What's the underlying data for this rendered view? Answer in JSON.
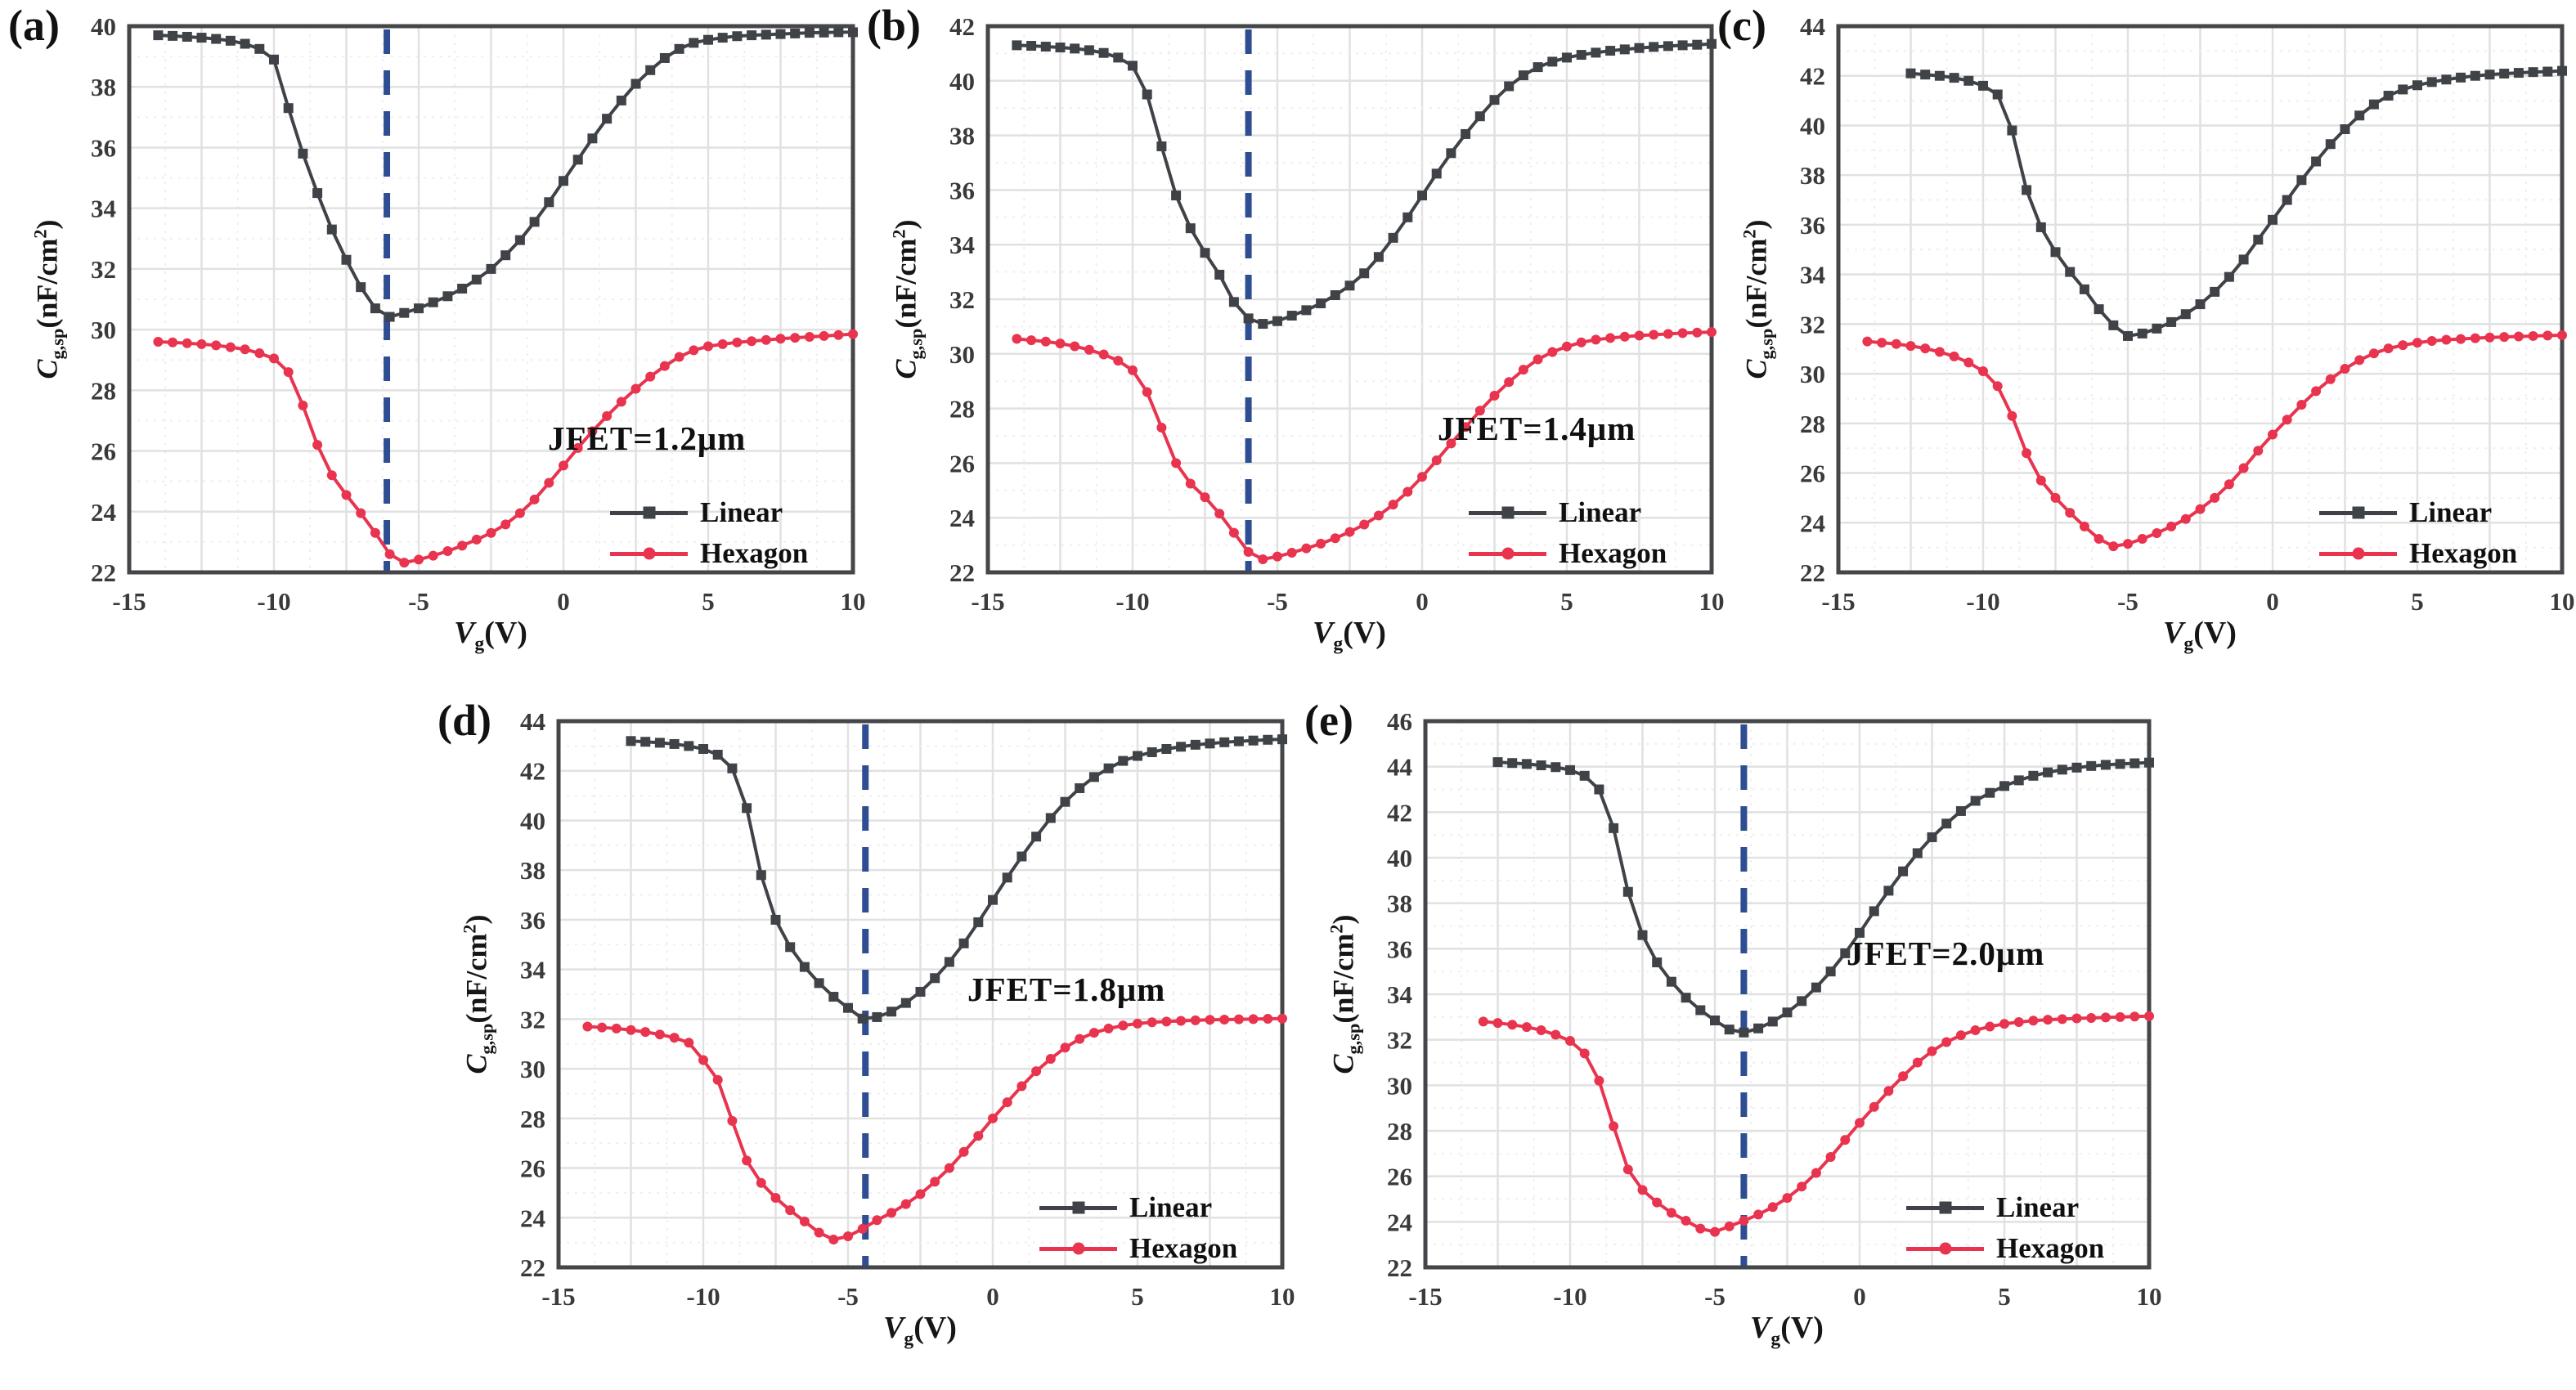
{
  "legend": {
    "linear": "Linear",
    "hexagon": "Hexagon"
  },
  "labels": {
    "x_main": "V",
    "x_sub": "g",
    "x_rest": "(V)",
    "y_main": "C",
    "y_sub": "g,sp",
    "y_rest": "(nF/cm",
    "y_sup": "2",
    "y_close": ")"
  },
  "style": {
    "linear": "#3f4247",
    "hexagon": "#e8344e",
    "dashed": "#2e4d92",
    "grid_major": "#e1e1e1",
    "grid_minor": "#efefef",
    "frame": "#45464a",
    "tick": "#3a3a3a"
  },
  "chart_data": [
    {
      "type": "line",
      "tag": "(a)",
      "jfet_label": "JFET=1.2μm",
      "xlabel": "Vg(V)",
      "ylabel": "Cg,sp(nF/cm2)",
      "xlim": [
        -15,
        10
      ],
      "x_ticks": [
        -15,
        -10,
        -5,
        0,
        5,
        10
      ],
      "ylim": [
        22,
        40
      ],
      "ytick_step": 2,
      "dashed_x": -6.1,
      "grid": true,
      "legend_position": "lower right",
      "series": [
        {
          "name": "Linear",
          "marker": "square",
          "x0": -14,
          "dx": 0.5,
          "y": [
            39.7,
            39.68,
            39.65,
            39.62,
            39.58,
            39.52,
            39.42,
            39.25,
            38.9,
            37.3,
            35.8,
            34.5,
            33.3,
            32.3,
            31.4,
            30.7,
            30.42,
            30.55,
            30.7,
            30.9,
            31.1,
            31.35,
            31.65,
            32.0,
            32.45,
            32.95,
            33.55,
            34.2,
            34.9,
            35.6,
            36.3,
            36.95,
            37.55,
            38.1,
            38.55,
            38.95,
            39.25,
            39.45,
            39.55,
            39.62,
            39.67,
            39.7,
            39.72,
            39.74,
            39.76,
            39.78,
            39.79,
            39.8,
            39.8
          ]
        },
        {
          "name": "Hexagon",
          "marker": "circle",
          "x0": -14,
          "dx": 0.5,
          "y": [
            29.6,
            29.58,
            29.55,
            29.52,
            29.48,
            29.42,
            29.35,
            29.22,
            29.05,
            28.6,
            27.5,
            26.2,
            25.2,
            24.55,
            23.95,
            23.3,
            22.6,
            22.32,
            22.42,
            22.55,
            22.7,
            22.88,
            23.08,
            23.3,
            23.58,
            23.95,
            24.4,
            24.95,
            25.52,
            26.1,
            26.65,
            27.15,
            27.62,
            28.05,
            28.45,
            28.8,
            29.1,
            29.32,
            29.45,
            29.52,
            29.58,
            29.62,
            29.66,
            29.7,
            29.73,
            29.76,
            29.79,
            29.82,
            29.85
          ]
        }
      ]
    },
    {
      "type": "line",
      "tag": "(b)",
      "jfet_label": "JFET=1.4μm",
      "xlabel": "Vg(V)",
      "ylabel": "Cg,sp(nF/cm2)",
      "xlim": [
        -15,
        10
      ],
      "x_ticks": [
        -15,
        -10,
        -5,
        0,
        5,
        10
      ],
      "ylim": [
        22,
        42
      ],
      "ytick_step": 2,
      "dashed_x": -6.0,
      "grid": true,
      "legend_position": "lower right",
      "series": [
        {
          "name": "Linear",
          "marker": "square",
          "x0": -14,
          "dx": 0.5,
          "y": [
            41.3,
            41.28,
            41.25,
            41.22,
            41.18,
            41.12,
            41.02,
            40.85,
            40.55,
            39.5,
            37.6,
            35.8,
            34.6,
            33.7,
            32.9,
            31.9,
            31.3,
            31.1,
            31.2,
            31.4,
            31.6,
            31.85,
            32.15,
            32.5,
            32.95,
            33.55,
            34.25,
            35.0,
            35.8,
            36.6,
            37.35,
            38.05,
            38.7,
            39.3,
            39.8,
            40.2,
            40.5,
            40.7,
            40.85,
            40.95,
            41.03,
            41.1,
            41.15,
            41.2,
            41.24,
            41.27,
            41.3,
            41.32,
            41.35
          ]
        },
        {
          "name": "Hexagon",
          "marker": "circle",
          "x0": -14,
          "dx": 0.5,
          "y": [
            30.55,
            30.5,
            30.45,
            30.38,
            30.28,
            30.15,
            29.98,
            29.75,
            29.4,
            28.6,
            27.3,
            26.0,
            25.25,
            24.75,
            24.15,
            23.45,
            22.75,
            22.48,
            22.58,
            22.72,
            22.88,
            23.05,
            23.25,
            23.48,
            23.75,
            24.08,
            24.48,
            24.95,
            25.5,
            26.1,
            26.72,
            27.32,
            27.92,
            28.47,
            28.97,
            29.42,
            29.8,
            30.07,
            30.27,
            30.42,
            30.52,
            30.58,
            30.63,
            30.67,
            30.7,
            30.73,
            30.76,
            30.78,
            30.8
          ]
        }
      ]
    },
    {
      "type": "line",
      "tag": "(c)",
      "xlabel": "Vg(V)",
      "ylabel": "Cg,sp(nF/cm2)",
      "xlim": [
        -15,
        10
      ],
      "x_ticks": [
        -15,
        -10,
        -5,
        0,
        5,
        10
      ],
      "ylim": [
        22,
        44
      ],
      "ytick_step": 2,
      "dashed_x": null,
      "grid": true,
      "legend_position": "lower right",
      "series": [
        {
          "name": "Linear",
          "marker": "square",
          "x0": -12.5,
          "dx": 0.5,
          "y": [
            42.1,
            42.05,
            42.0,
            41.92,
            41.8,
            41.6,
            41.25,
            39.8,
            37.4,
            35.9,
            34.9,
            34.1,
            33.4,
            32.6,
            31.95,
            31.52,
            31.62,
            31.82,
            32.08,
            32.4,
            32.8,
            33.3,
            33.9,
            34.6,
            35.4,
            36.2,
            37.0,
            37.8,
            38.55,
            39.25,
            39.85,
            40.4,
            40.85,
            41.2,
            41.45,
            41.62,
            41.75,
            41.85,
            41.93,
            42.0,
            42.05,
            42.09,
            42.12,
            42.15,
            42.17,
            42.2
          ]
        },
        {
          "name": "Hexagon",
          "marker": "circle",
          "x0": -14,
          "dx": 0.5,
          "y": [
            31.3,
            31.25,
            31.2,
            31.12,
            31.02,
            30.88,
            30.7,
            30.45,
            30.1,
            29.5,
            28.3,
            26.8,
            25.7,
            25.0,
            24.4,
            23.85,
            23.35,
            23.05,
            23.15,
            23.35,
            23.58,
            23.85,
            24.15,
            24.55,
            25.0,
            25.55,
            26.2,
            26.9,
            27.55,
            28.15,
            28.75,
            29.3,
            29.78,
            30.2,
            30.55,
            30.82,
            31.02,
            31.15,
            31.25,
            31.32,
            31.37,
            31.4,
            31.43,
            31.46,
            31.48,
            31.5,
            31.52,
            31.54,
            31.55
          ]
        }
      ]
    },
    {
      "type": "line",
      "tag": "(d)",
      "jfet_label": "JFET=1.8μm",
      "xlabel": "Vg(V)",
      "ylabel": "Cg,sp(nF/cm2)",
      "xlim": [
        -15,
        10
      ],
      "x_ticks": [
        -15,
        -10,
        -5,
        0,
        5,
        10
      ],
      "ylim": [
        22,
        44
      ],
      "ytick_step": 2,
      "dashed_x": -4.4,
      "grid": true,
      "legend_position": "lower right",
      "series": [
        {
          "name": "Linear",
          "marker": "square",
          "x0": -12.5,
          "dx": 0.5,
          "y": [
            43.2,
            43.17,
            43.13,
            43.08,
            43.0,
            42.88,
            42.65,
            42.1,
            40.5,
            37.8,
            36.0,
            34.9,
            34.1,
            33.45,
            32.9,
            32.45,
            32.02,
            32.08,
            32.3,
            32.65,
            33.1,
            33.65,
            34.3,
            35.05,
            35.9,
            36.8,
            37.7,
            38.55,
            39.35,
            40.1,
            40.75,
            41.3,
            41.75,
            42.1,
            42.4,
            42.6,
            42.75,
            42.88,
            42.97,
            43.05,
            43.1,
            43.15,
            43.19,
            43.22,
            43.25,
            43.27
          ]
        },
        {
          "name": "Hexagon",
          "marker": "circle",
          "x0": -14,
          "dx": 0.5,
          "y": [
            31.7,
            31.66,
            31.62,
            31.56,
            31.48,
            31.38,
            31.25,
            31.05,
            30.35,
            29.55,
            27.9,
            26.3,
            25.4,
            24.8,
            24.3,
            23.85,
            23.4,
            23.12,
            23.25,
            23.55,
            23.9,
            24.2,
            24.55,
            24.95,
            25.45,
            26.0,
            26.65,
            27.3,
            28.0,
            28.65,
            29.3,
            29.9,
            30.4,
            30.85,
            31.2,
            31.45,
            31.62,
            31.74,
            31.82,
            31.87,
            31.9,
            31.93,
            31.95,
            31.97,
            31.98,
            31.99,
            32.0,
            32.01,
            32.02
          ]
        }
      ]
    },
    {
      "type": "line",
      "tag": "(e)",
      "jfet_label": "JFET=2.0μm",
      "xlabel": "Vg(V)",
      "ylabel": "Cg,sp(nF/cm2)",
      "xlim": [
        -15,
        10
      ],
      "x_ticks": [
        -15,
        -10,
        -5,
        0,
        5,
        10
      ],
      "ylim": [
        22,
        46
      ],
      "ytick_step": 2,
      "dashed_x": -4.0,
      "grid": true,
      "legend_position": "lower right",
      "series": [
        {
          "name": "Linear",
          "marker": "square",
          "x0": -12.5,
          "dx": 0.5,
          "y": [
            44.2,
            44.16,
            44.12,
            44.06,
            43.98,
            43.85,
            43.6,
            43.0,
            41.3,
            38.5,
            36.6,
            35.4,
            34.55,
            33.85,
            33.3,
            32.85,
            32.45,
            32.32,
            32.5,
            32.8,
            33.2,
            33.7,
            34.3,
            35.0,
            35.8,
            36.7,
            37.65,
            38.55,
            39.4,
            40.2,
            40.9,
            41.5,
            42.05,
            42.5,
            42.85,
            43.15,
            43.4,
            43.6,
            43.75,
            43.87,
            43.96,
            44.03,
            44.08,
            44.12,
            44.15,
            44.18
          ]
        },
        {
          "name": "Hexagon",
          "marker": "circle",
          "x0": -13,
          "dx": 0.5,
          "y": [
            32.8,
            32.74,
            32.66,
            32.56,
            32.42,
            32.22,
            31.95,
            31.4,
            30.2,
            28.2,
            26.3,
            25.4,
            24.85,
            24.4,
            24.05,
            23.7,
            23.56,
            23.8,
            24.05,
            24.32,
            24.65,
            25.05,
            25.55,
            26.15,
            26.85,
            27.6,
            28.35,
            29.05,
            29.75,
            30.4,
            31.0,
            31.5,
            31.9,
            32.2,
            32.42,
            32.58,
            32.7,
            32.78,
            32.84,
            32.88,
            32.91,
            32.94,
            32.96,
            32.98,
            33.0,
            33.02,
            33.04
          ]
        }
      ]
    }
  ]
}
